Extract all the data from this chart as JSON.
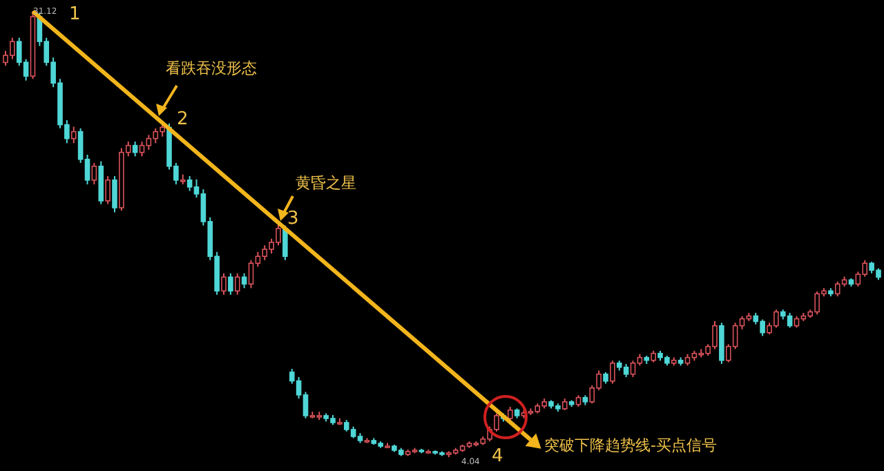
{
  "chart_data": {
    "type": "candlestick",
    "categories": [
      null,
      null,
      null,
      null,
      null,
      null,
      null,
      null,
      null,
      null,
      null,
      null,
      null,
      null,
      null,
      null,
      null,
      null,
      null,
      null,
      null,
      null,
      null,
      null,
      null,
      null,
      null,
      null,
      null,
      null,
      null,
      null,
      null,
      null,
      null,
      null,
      null,
      null,
      null,
      null,
      null,
      null,
      null,
      null,
      null,
      null,
      null,
      null,
      null,
      null,
      null,
      null,
      null,
      null,
      null,
      null,
      null,
      null,
      null,
      null,
      null,
      null,
      null,
      null,
      null,
      null,
      null,
      null,
      null,
      null,
      null,
      null,
      null,
      null,
      null,
      null,
      null,
      null,
      null,
      null,
      null,
      null,
      null,
      null,
      null,
      null,
      null,
      null,
      null,
      null,
      null,
      null,
      null,
      null,
      null,
      null,
      null,
      null,
      null,
      null,
      null,
      null,
      null,
      null,
      null,
      null,
      null,
      null,
      null,
      null,
      null,
      null,
      null,
      null,
      null,
      null,
      null,
      null,
      null,
      null,
      null,
      null,
      null,
      null,
      null,
      null,
      null,
      null,
      null
    ],
    "series": [
      {
        "colors": [
          "#d9535b",
          "#d9535b",
          "#4fd6d6",
          "#4fd6d6",
          "#d9535b",
          "#4fd6d6",
          "#4fd6d6",
          "#4fd6d6",
          "#4fd6d6",
          "#4fd6d6",
          "#d9535b",
          "#4fd6d6",
          "#4fd6d6",
          "#d9535b",
          "#4fd6d6",
          "#d9535b",
          "#4fd6d6",
          "#d9535b",
          "#d9535b",
          "#4fd6d6",
          "#d9535b",
          "#d9535b",
          "#d9535b",
          "#d9535b",
          "#4fd6d6",
          "#4fd6d6",
          "#d9535b",
          "#4fd6d6",
          "#4fd6d6",
          "#4fd6d6",
          "#4fd6d6",
          "#4fd6d6",
          "#d9535b",
          "#4fd6d6",
          "#d9535b",
          "#4fd6d6",
          "#d9535b",
          "#d9535b",
          "#d9535b",
          "#d9535b",
          "#d9535b",
          "#4fd6d6",
          "#4fd6d6",
          "#4fd6d6",
          "#4fd6d6",
          "#d9535b",
          "#d9535b",
          "#4fd6d6",
          "#4fd6d6",
          "#d9535b",
          "#4fd6d6",
          "#4fd6d6",
          "#4fd6d6",
          "#d9535b",
          "#4fd6d6",
          "#4fd6d6",
          "#d9535b",
          "#4fd6d6",
          "#4fd6d6",
          "#d9535b",
          "#d9535b",
          "#4fd6d6",
          "#d9535b",
          "#4fd6d6",
          "#4fd6d6",
          "#d9535b",
          "#d9535b",
          "#d9535b",
          "#d9535b",
          "#d9535b",
          "#d9535b",
          "#d9535b",
          "#d9535b",
          "#4fd6d6",
          "#d9535b",
          "#4fd6d6",
          "#d9535b",
          "#d9535b",
          "#d9535b",
          "#d9535b",
          "#4fd6d6",
          "#4fd6d6",
          "#d9535b",
          "#4fd6d6",
          "#d9535b",
          "#4fd6d6",
          "#d9535b",
          "#d9535b",
          "#4fd6d6",
          "#d9535b",
          "#4fd6d6",
          "#4fd6d6",
          "#d9535b",
          "#d9535b",
          "#4fd6d6",
          "#d9535b",
          "#4fd6d6",
          "#4fd6d6",
          "#d9535b",
          "#4fd6d6",
          "#d9535b",
          "#d9535b",
          "#d9535b",
          "#d9535b",
          "#d9535b",
          "#4fd6d6",
          "#d9535b",
          "#d9535b",
          "#d9535b",
          "#d9535b",
          "#4fd6d6",
          "#4fd6d6",
          "#d9535b",
          "#d9535b",
          "#4fd6d6",
          "#4fd6d6",
          "#d9535b",
          "#d9535b",
          "#d9535b",
          "#d9535b",
          "#d9535b",
          "#4fd6d6",
          "#d9535b",
          "#d9535b",
          "#4fd6d6",
          "#d9535b",
          "#d9535b",
          "#4fd6d6",
          "#4fd6d6"
        ],
        "ohlc": [
          [
            28.0,
            28.7,
            27.8,
            28.43
          ],
          [
            28.43,
            29.5,
            28.2,
            29.27
          ],
          [
            29.27,
            29.5,
            27.8,
            28.01
          ],
          [
            28.01,
            28.2,
            26.9,
            27.17
          ],
          [
            27.17,
            31.12,
            27.0,
            30.78
          ],
          [
            30.78,
            31.03,
            29.0,
            29.27
          ],
          [
            29.27,
            29.5,
            27.8,
            28.01
          ],
          [
            28.01,
            28.3,
            26.5,
            26.75
          ],
          [
            26.75,
            27.0,
            24.0,
            24.22
          ],
          [
            24.22,
            24.5,
            23.1,
            23.38
          ],
          [
            23.38,
            24.1,
            23.1,
            23.8
          ],
          [
            23.8,
            24.0,
            21.9,
            22.12
          ],
          [
            22.12,
            22.4,
            20.6,
            20.86
          ],
          [
            20.86,
            21.9,
            20.6,
            21.7
          ],
          [
            21.7,
            22.0,
            19.4,
            19.6
          ],
          [
            19.6,
            21.1,
            19.4,
            20.86
          ],
          [
            20.86,
            21.1,
            18.9,
            19.18
          ],
          [
            19.18,
            22.8,
            19.0,
            22.54
          ],
          [
            22.54,
            23.2,
            22.3,
            22.96
          ],
          [
            22.96,
            23.2,
            22.3,
            22.54
          ],
          [
            22.54,
            23.2,
            22.3,
            22.96
          ],
          [
            22.96,
            23.6,
            22.7,
            23.38
          ],
          [
            23.38,
            24.0,
            23.1,
            23.8
          ],
          [
            23.8,
            24.39,
            23.5,
            24.06
          ],
          [
            24.06,
            24.3,
            21.5,
            21.7
          ],
          [
            21.7,
            21.9,
            20.6,
            20.86
          ],
          [
            20.86,
            21.2,
            20.6,
            20.86
          ],
          [
            20.86,
            21.1,
            20.2,
            20.44
          ],
          [
            20.44,
            20.9,
            19.8,
            20.02
          ],
          [
            20.02,
            20.3,
            18.1,
            18.34
          ],
          [
            18.34,
            18.6,
            16.0,
            16.23
          ],
          [
            16.23,
            16.5,
            13.9,
            14.13
          ],
          [
            14.13,
            15.2,
            13.9,
            14.97
          ],
          [
            14.97,
            15.2,
            13.9,
            14.13
          ],
          [
            14.13,
            15.2,
            13.9,
            14.97
          ],
          [
            14.97,
            15.2,
            14.3,
            14.55
          ],
          [
            14.55,
            16.0,
            14.3,
            15.81
          ],
          [
            15.81,
            16.5,
            15.6,
            16.23
          ],
          [
            16.23,
            16.9,
            16.0,
            16.66
          ],
          [
            16.66,
            17.3,
            16.4,
            17.08
          ],
          [
            17.08,
            18.34,
            16.9,
            17.92
          ],
          [
            17.92,
            18.1,
            16.0,
            16.23
          ],
          [
            9.2,
            9.4,
            8.5,
            8.67
          ],
          [
            8.67,
            8.9,
            7.6,
            7.82
          ],
          [
            7.82,
            8.0,
            6.4,
            6.56
          ],
          [
            6.56,
            6.8,
            6.4,
            6.56
          ],
          [
            6.56,
            6.8,
            6.3,
            6.56
          ],
          [
            6.56,
            6.7,
            6.2,
            6.39
          ],
          [
            6.39,
            6.6,
            6.0,
            6.14
          ],
          [
            6.14,
            6.4,
            6.0,
            6.14
          ],
          [
            6.14,
            6.3,
            5.6,
            5.72
          ],
          [
            5.72,
            5.9,
            5.2,
            5.3
          ],
          [
            5.3,
            5.5,
            4.9,
            5.05
          ],
          [
            5.05,
            5.2,
            4.9,
            5.05
          ],
          [
            5.05,
            5.2,
            4.8,
            4.88
          ],
          [
            4.88,
            5.0,
            4.6,
            4.71
          ],
          [
            4.71,
            4.9,
            4.6,
            4.71
          ],
          [
            4.71,
            4.8,
            4.36,
            4.46
          ],
          [
            4.46,
            4.6,
            4.11,
            4.21
          ],
          [
            4.21,
            4.5,
            4.11,
            4.38
          ],
          [
            4.38,
            4.6,
            4.28,
            4.46
          ],
          [
            4.46,
            4.55,
            4.28,
            4.38
          ],
          [
            4.38,
            4.5,
            4.28,
            4.38
          ],
          [
            4.38,
            4.45,
            4.2,
            4.3
          ],
          [
            4.3,
            4.4,
            4.11,
            4.21
          ],
          [
            4.21,
            4.4,
            4.04,
            4.3
          ],
          [
            4.3,
            4.6,
            4.2,
            4.46
          ],
          [
            4.46,
            4.8,
            4.36,
            4.71
          ],
          [
            4.71,
            5.0,
            4.6,
            4.88
          ],
          [
            4.88,
            5.0,
            4.7,
            4.88
          ],
          [
            4.88,
            5.3,
            4.78,
            5.14
          ],
          [
            5.14,
            5.9,
            5.0,
            5.72
          ],
          [
            5.72,
            6.7,
            5.6,
            6.56
          ],
          [
            6.56,
            6.7,
            6.2,
            6.39
          ],
          [
            6.39,
            7.1,
            6.2,
            6.9
          ],
          [
            6.9,
            7.0,
            6.4,
            6.56
          ],
          [
            6.56,
            6.9,
            6.4,
            6.73
          ],
          [
            6.73,
            7.0,
            6.6,
            6.81
          ],
          [
            6.81,
            7.3,
            6.7,
            7.15
          ],
          [
            7.15,
            7.6,
            7.0,
            7.4
          ],
          [
            7.4,
            7.5,
            7.0,
            7.15
          ],
          [
            7.15,
            7.3,
            6.8,
            6.98
          ],
          [
            6.98,
            7.6,
            6.9,
            7.4
          ],
          [
            7.4,
            7.5,
            7.1,
            7.24
          ],
          [
            7.24,
            7.8,
            7.1,
            7.66
          ],
          [
            7.66,
            7.8,
            7.2,
            7.4
          ],
          [
            7.4,
            8.4,
            7.3,
            8.24
          ],
          [
            8.24,
            9.3,
            8.1,
            9.08
          ],
          [
            9.08,
            9.2,
            8.5,
            8.66
          ],
          [
            8.66,
            9.9,
            8.5,
            9.75
          ],
          [
            9.75,
            9.9,
            9.3,
            9.5
          ],
          [
            9.5,
            9.7,
            8.9,
            9.08
          ],
          [
            9.08,
            9.9,
            8.9,
            9.75
          ],
          [
            9.75,
            10.3,
            9.6,
            10.09
          ],
          [
            10.09,
            10.2,
            9.7,
            9.92
          ],
          [
            9.92,
            10.5,
            9.8,
            10.34
          ],
          [
            10.34,
            10.5,
            9.9,
            10.09
          ],
          [
            10.09,
            10.2,
            9.6,
            9.75
          ],
          [
            9.75,
            10.1,
            9.6,
            9.92
          ],
          [
            9.92,
            10.1,
            9.6,
            9.75
          ],
          [
            9.75,
            10.3,
            9.6,
            10.09
          ],
          [
            10.09,
            10.5,
            9.9,
            10.34
          ],
          [
            10.34,
            10.6,
            10.1,
            10.34
          ],
          [
            10.34,
            10.9,
            10.2,
            10.76
          ],
          [
            10.76,
            12.3,
            10.6,
            12.02
          ],
          [
            12.02,
            12.2,
            9.7,
            9.92
          ],
          [
            9.92,
            10.9,
            9.8,
            10.76
          ],
          [
            10.76,
            12.2,
            10.6,
            12.02
          ],
          [
            12.02,
            12.6,
            11.8,
            12.44
          ],
          [
            12.44,
            12.8,
            12.3,
            12.61
          ],
          [
            12.61,
            12.8,
            12.1,
            12.28
          ],
          [
            12.28,
            12.4,
            11.4,
            11.6
          ],
          [
            11.6,
            12.2,
            11.5,
            12.02
          ],
          [
            12.02,
            13.0,
            11.9,
            12.86
          ],
          [
            12.86,
            13.0,
            12.4,
            12.61
          ],
          [
            12.61,
            12.8,
            11.9,
            12.02
          ],
          [
            12.02,
            12.6,
            11.9,
            12.44
          ],
          [
            12.44,
            12.8,
            12.3,
            12.61
          ],
          [
            12.61,
            13.0,
            12.5,
            12.86
          ],
          [
            12.86,
            14.1,
            12.7,
            13.96
          ],
          [
            13.96,
            14.3,
            13.8,
            14.13
          ],
          [
            14.13,
            14.3,
            13.8,
            13.96
          ],
          [
            13.96,
            14.7,
            13.8,
            14.55
          ],
          [
            14.55,
            15.0,
            14.4,
            14.8
          ],
          [
            14.8,
            14.9,
            14.4,
            14.55
          ],
          [
            14.55,
            15.3,
            14.4,
            15.14
          ],
          [
            15.14,
            16.0,
            15.0,
            15.81
          ],
          [
            15.81,
            15.9,
            15.2,
            15.39
          ],
          [
            15.39,
            15.5,
            14.8,
            14.97
          ]
        ]
      },
      {
        "type": "line",
        "color": "#f2b51c",
        "values": [
          null,
          null,
          null,
          null,
          31.1,
          null,
          null,
          null,
          null,
          null,
          null,
          null,
          null,
          null,
          null,
          null,
          null,
          null,
          null,
          null,
          null,
          null,
          null,
          null,
          null,
          null,
          null,
          null,
          null,
          null,
          null,
          null,
          null,
          null,
          null,
          null,
          null,
          null,
          null,
          null,
          null,
          null,
          null,
          null,
          null,
          null,
          null,
          null,
          null,
          null,
          null,
          null,
          null,
          null,
          null,
          null,
          null,
          null,
          null,
          null,
          null,
          null,
          null,
          null,
          null,
          null,
          null,
          null,
          null,
          null,
          null,
          null,
          null,
          null,
          null,
          null,
          null,
          5.1,
          null,
          null,
          null,
          null,
          null,
          null,
          null,
          null,
          null,
          null,
          null,
          null,
          null,
          null,
          null,
          null,
          null,
          null,
          null,
          null,
          null,
          null,
          null,
          null,
          null,
          null,
          null,
          null,
          null,
          null,
          null,
          null,
          null,
          null,
          null,
          null,
          null,
          null,
          null,
          null,
          null,
          null,
          null,
          null,
          null,
          null,
          null,
          null,
          null,
          null,
          null
        ]
      }
    ],
    "annotations": [
      "31.12",
      "4.04",
      "1",
      "2",
      "3",
      "4",
      "看跌吞没形态",
      "黄昏之星",
      "突破下降趋势线-买点信号"
    ]
  }
}
